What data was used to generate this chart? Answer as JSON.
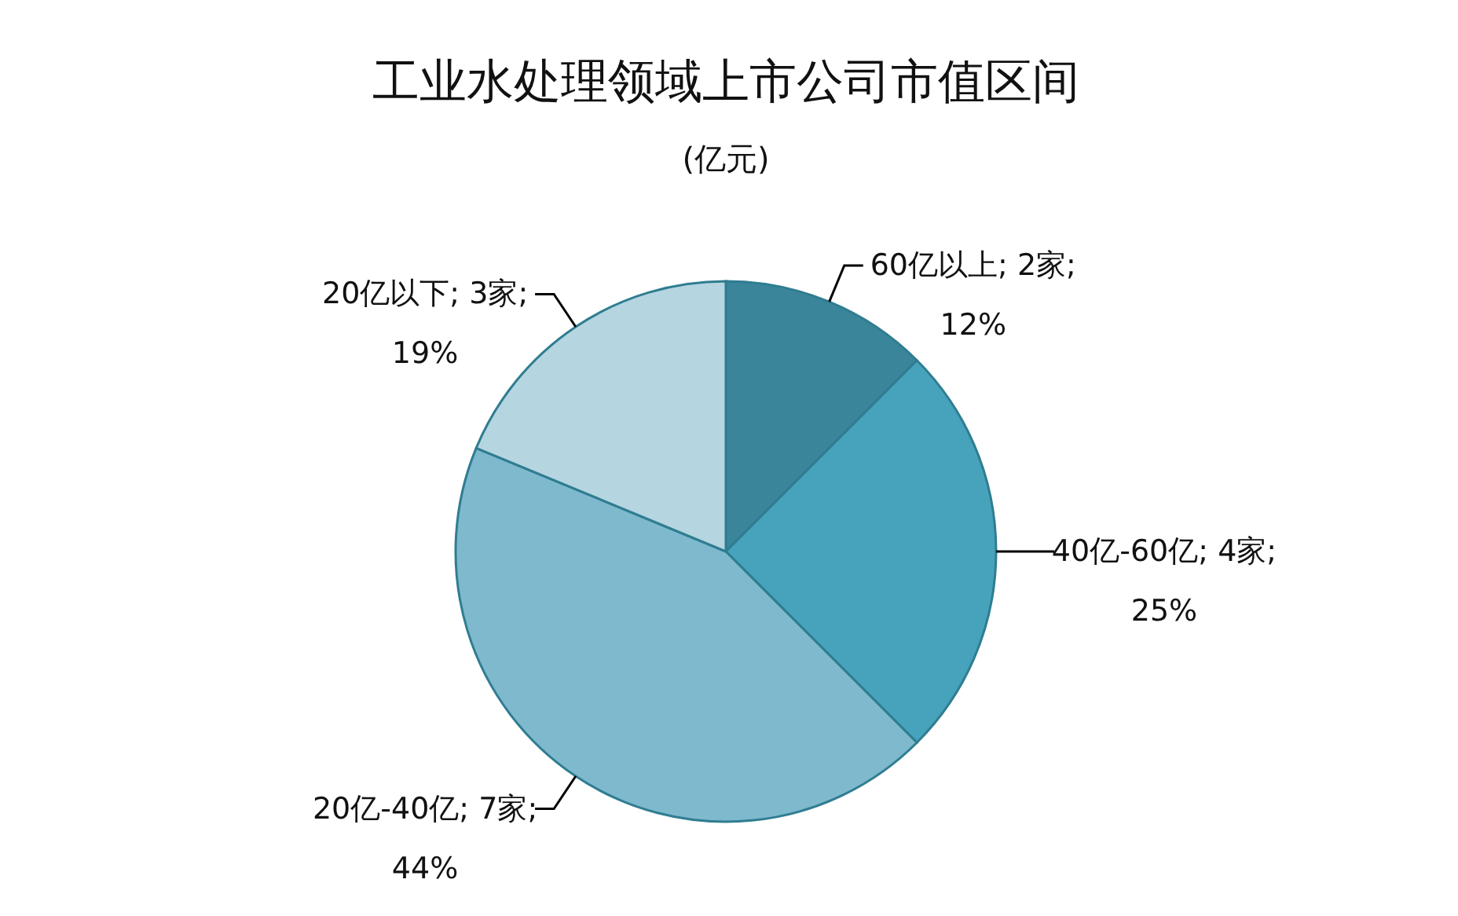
{
  "chart_data": {
    "type": "pie",
    "title": "工业水处理领域上市公司市值区间",
    "subtitle": "(亿元)",
    "categories": [
      "60亿以上",
      "40亿-60亿",
      "20亿-40亿",
      "20亿以下"
    ],
    "values": [
      2,
      4,
      7,
      3
    ],
    "value_labels": [
      "2家;\n12%",
      "4家;\n25%",
      "7家;\n44%",
      "3家;\n19%"
    ],
    "colors": [
      "#3a8599",
      "#47a3bb",
      "#7fb9ce",
      "#b5d5e1"
    ]
  }
}
